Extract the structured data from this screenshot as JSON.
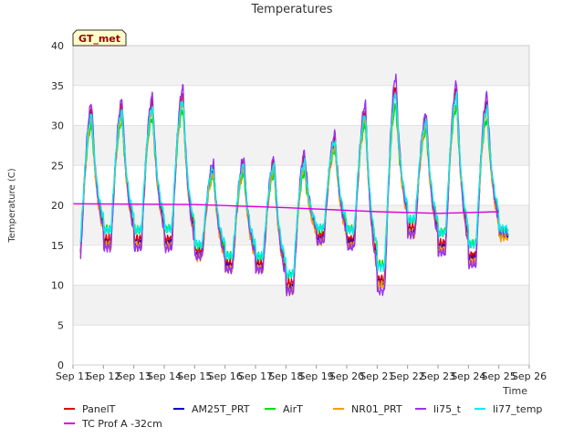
{
  "chart_data": {
    "type": "line",
    "title": "Temperatures",
    "xlabel": "Time",
    "ylabel": "Temperature (C)",
    "badge": "GT_met",
    "ylim": [
      0,
      40
    ],
    "yticks": [
      0,
      5,
      10,
      15,
      20,
      25,
      30,
      35,
      40
    ],
    "xticks": [
      "Sep 11",
      "Sep 12",
      "Sep 13",
      "Sep 14",
      "Sep 15",
      "Sep 16",
      "Sep 17",
      "Sep 18",
      "Sep 19",
      "Sep 20",
      "Sep 21",
      "Sep 22",
      "Sep 23",
      "Sep 24",
      "Sep 25",
      "Sep 26"
    ],
    "xlim": [
      "Sep 11",
      "Sep 26"
    ],
    "grid": "horizontal bands",
    "legend_position": "bottom",
    "days": [
      {
        "date": "Sep 11",
        "min": 14.0,
        "max": 31.5
      },
      {
        "date": "Sep 12",
        "min": 15.5,
        "max": 32.0
      },
      {
        "date": "Sep 13",
        "min": 15.5,
        "max": 32.5
      },
      {
        "date": "Sep 14",
        "min": 15.5,
        "max": 33.5
      },
      {
        "date": "Sep 15",
        "min": 14.0,
        "max": 24.5
      },
      {
        "date": "Sep 16",
        "min": 12.5,
        "max": 25.0
      },
      {
        "date": "Sep 17",
        "min": 12.5,
        "max": 25.0
      },
      {
        "date": "Sep 18",
        "min": 10.0,
        "max": 25.5
      },
      {
        "date": "Sep 19",
        "min": 16.0,
        "max": 28.0
      },
      {
        "date": "Sep 20",
        "min": 15.5,
        "max": 31.5
      },
      {
        "date": "Sep 21",
        "min": 10.5,
        "max": 34.5
      },
      {
        "date": "Sep 22",
        "min": 17.0,
        "max": 30.5
      },
      {
        "date": "Sep 23",
        "min": 15.0,
        "max": 34.0
      },
      {
        "date": "Sep 24",
        "min": 13.5,
        "max": 32.5
      },
      {
        "date": "Sep 25",
        "min": 16.5,
        "max": 16.5
      }
    ],
    "series": [
      {
        "name": "PanelT",
        "color": "#dd0000",
        "amp": 1.0,
        "off": 0.3
      },
      {
        "name": "AM25T_PRT",
        "color": "#0000cc",
        "amp": 1.0,
        "off": -0.3
      },
      {
        "name": "AirT",
        "color": "#00dd00",
        "amp": 0.82,
        "off": 0.0
      },
      {
        "name": "NR01_PRT",
        "color": "#ff9900",
        "amp": 1.0,
        "off": -0.5
      },
      {
        "name": "li75_t",
        "color": "#9933ee",
        "amp": 1.12,
        "off": 0.2
      },
      {
        "name": "li77_temp",
        "color": "#00eeee",
        "amp": 0.9,
        "off": 0.6
      },
      {
        "name": "TC Prof A -32cm",
        "color": "#dd00dd",
        "x": [
          "Sep 11",
          "Sep 15",
          "Sep 18",
          "Sep 21",
          "Sep 23",
          "Sep 25"
        ],
        "values": [
          20.2,
          20.1,
          19.7,
          19.2,
          19.0,
          19.2
        ]
      }
    ]
  }
}
